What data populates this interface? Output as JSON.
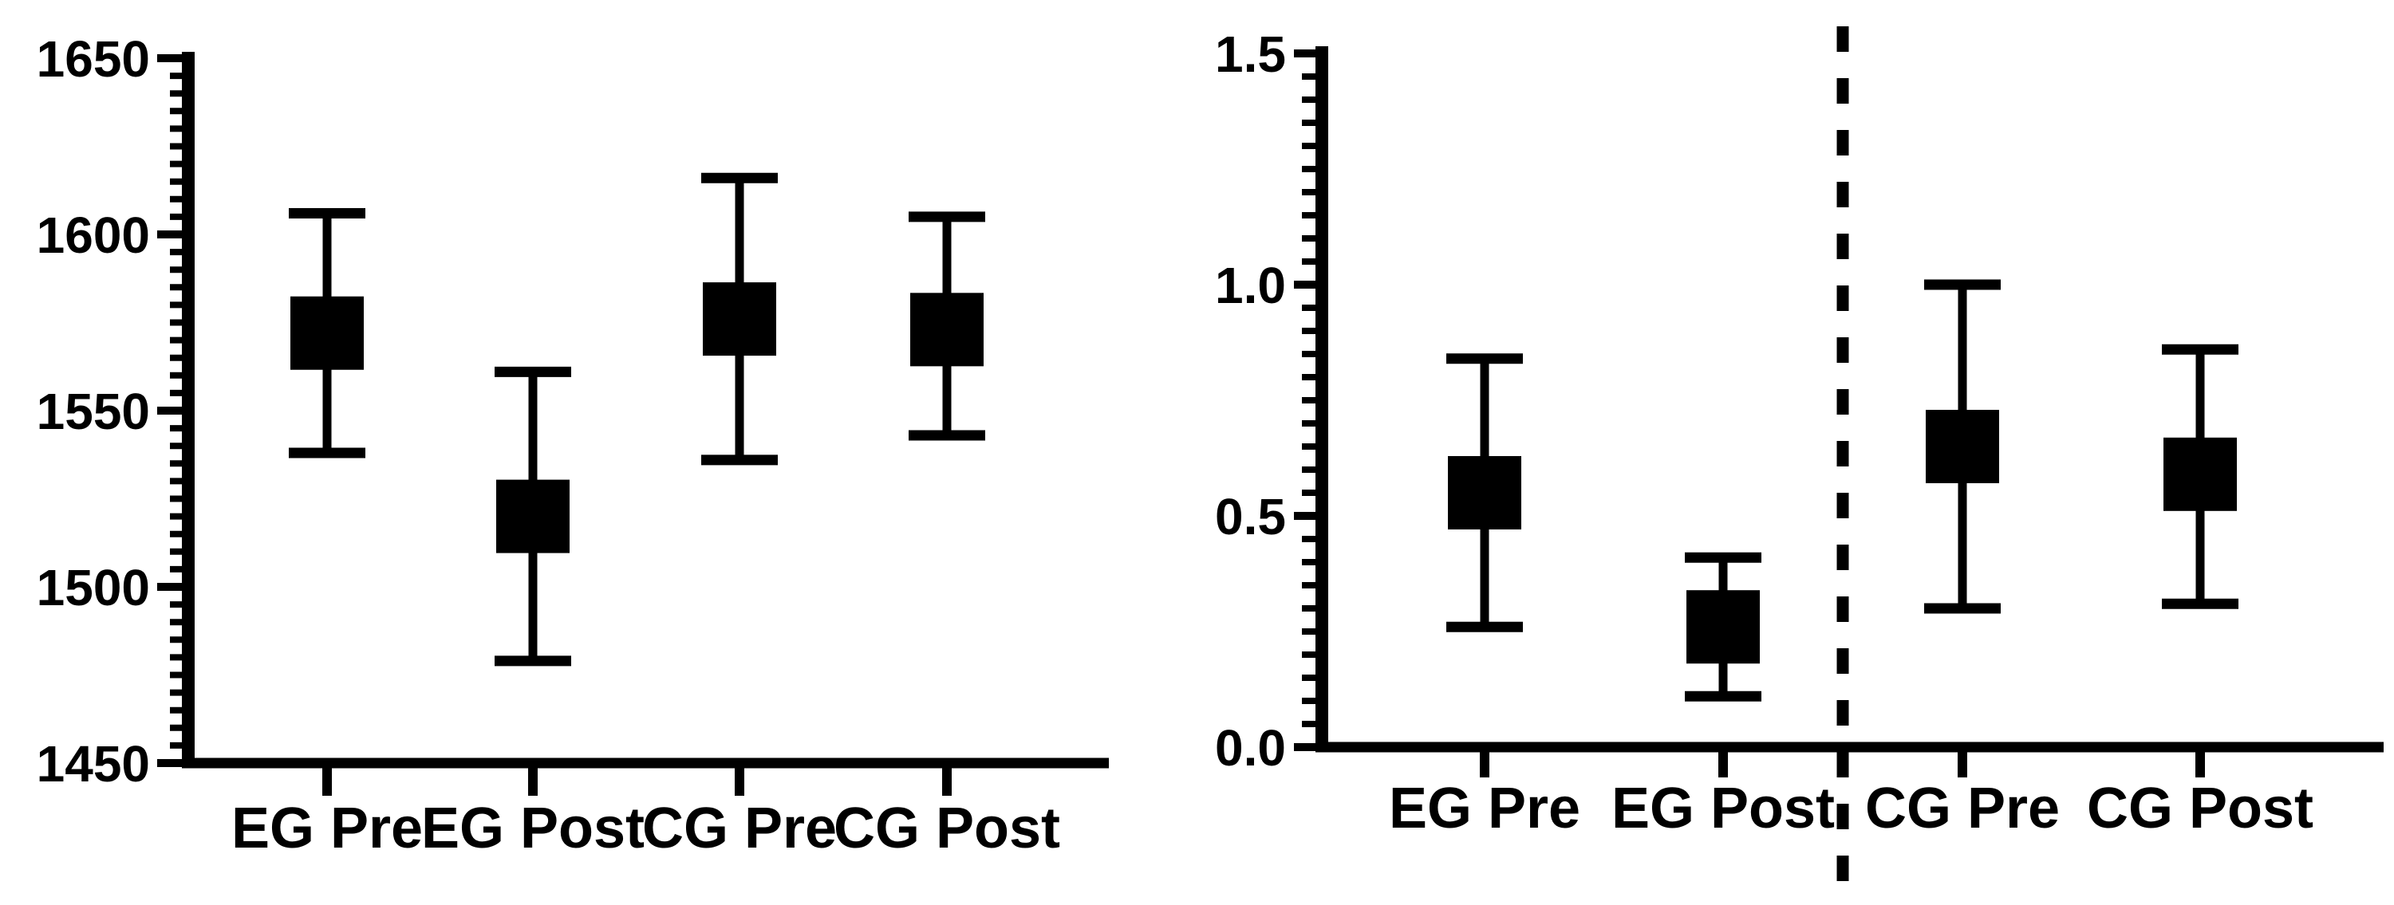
{
  "figure": {
    "background_color": "#ffffff",
    "ink_color": "#000000",
    "description": "Two-panel mean and error-bar scatter figure"
  },
  "chart_data": [
    {
      "panel": "left",
      "type": "scatter",
      "marker": "filled-square",
      "title": "",
      "xlabel": "",
      "ylabel": "",
      "categories": [
        "EG Pre",
        "EG Post",
        "CG Pre",
        "CG Post"
      ],
      "series": [
        {
          "name": "mean",
          "values": [
            1572,
            1520,
            1576,
            1573
          ],
          "error_low": [
            1538,
            1479,
            1536,
            1543
          ],
          "error_high": [
            1606,
            1561,
            1616,
            1605
          ]
        }
      ],
      "ylim": [
        1450,
        1650
      ],
      "y_major_step": 50,
      "y_minor_step": 5,
      "y_tick_labels": [
        "1450",
        "1500",
        "1550",
        "1600",
        "1650"
      ],
      "grid": false,
      "legend": "none"
    },
    {
      "panel": "right",
      "type": "scatter",
      "marker": "filled-square",
      "title": "",
      "xlabel": "",
      "ylabel": "",
      "categories": [
        "EG Pre",
        "EG Post",
        "CG Pre",
        "CG Post"
      ],
      "series": [
        {
          "name": "mean",
          "values": [
            0.55,
            0.26,
            0.65,
            0.59
          ],
          "error_low": [
            0.26,
            0.11,
            0.3,
            0.31
          ],
          "error_high": [
            0.84,
            0.41,
            1.0,
            0.86
          ]
        }
      ],
      "ylim": [
        0.0,
        1.5
      ],
      "y_major_step": 0.5,
      "y_minor_step": 0.05,
      "y_tick_labels": [
        "0.0",
        "0.5",
        "1.0",
        "1.5"
      ],
      "separator": {
        "style": "vertical-dashed-line",
        "after_category": "EG Post",
        "before_category": "CG Pre"
      },
      "grid": false,
      "legend": "none"
    }
  ]
}
